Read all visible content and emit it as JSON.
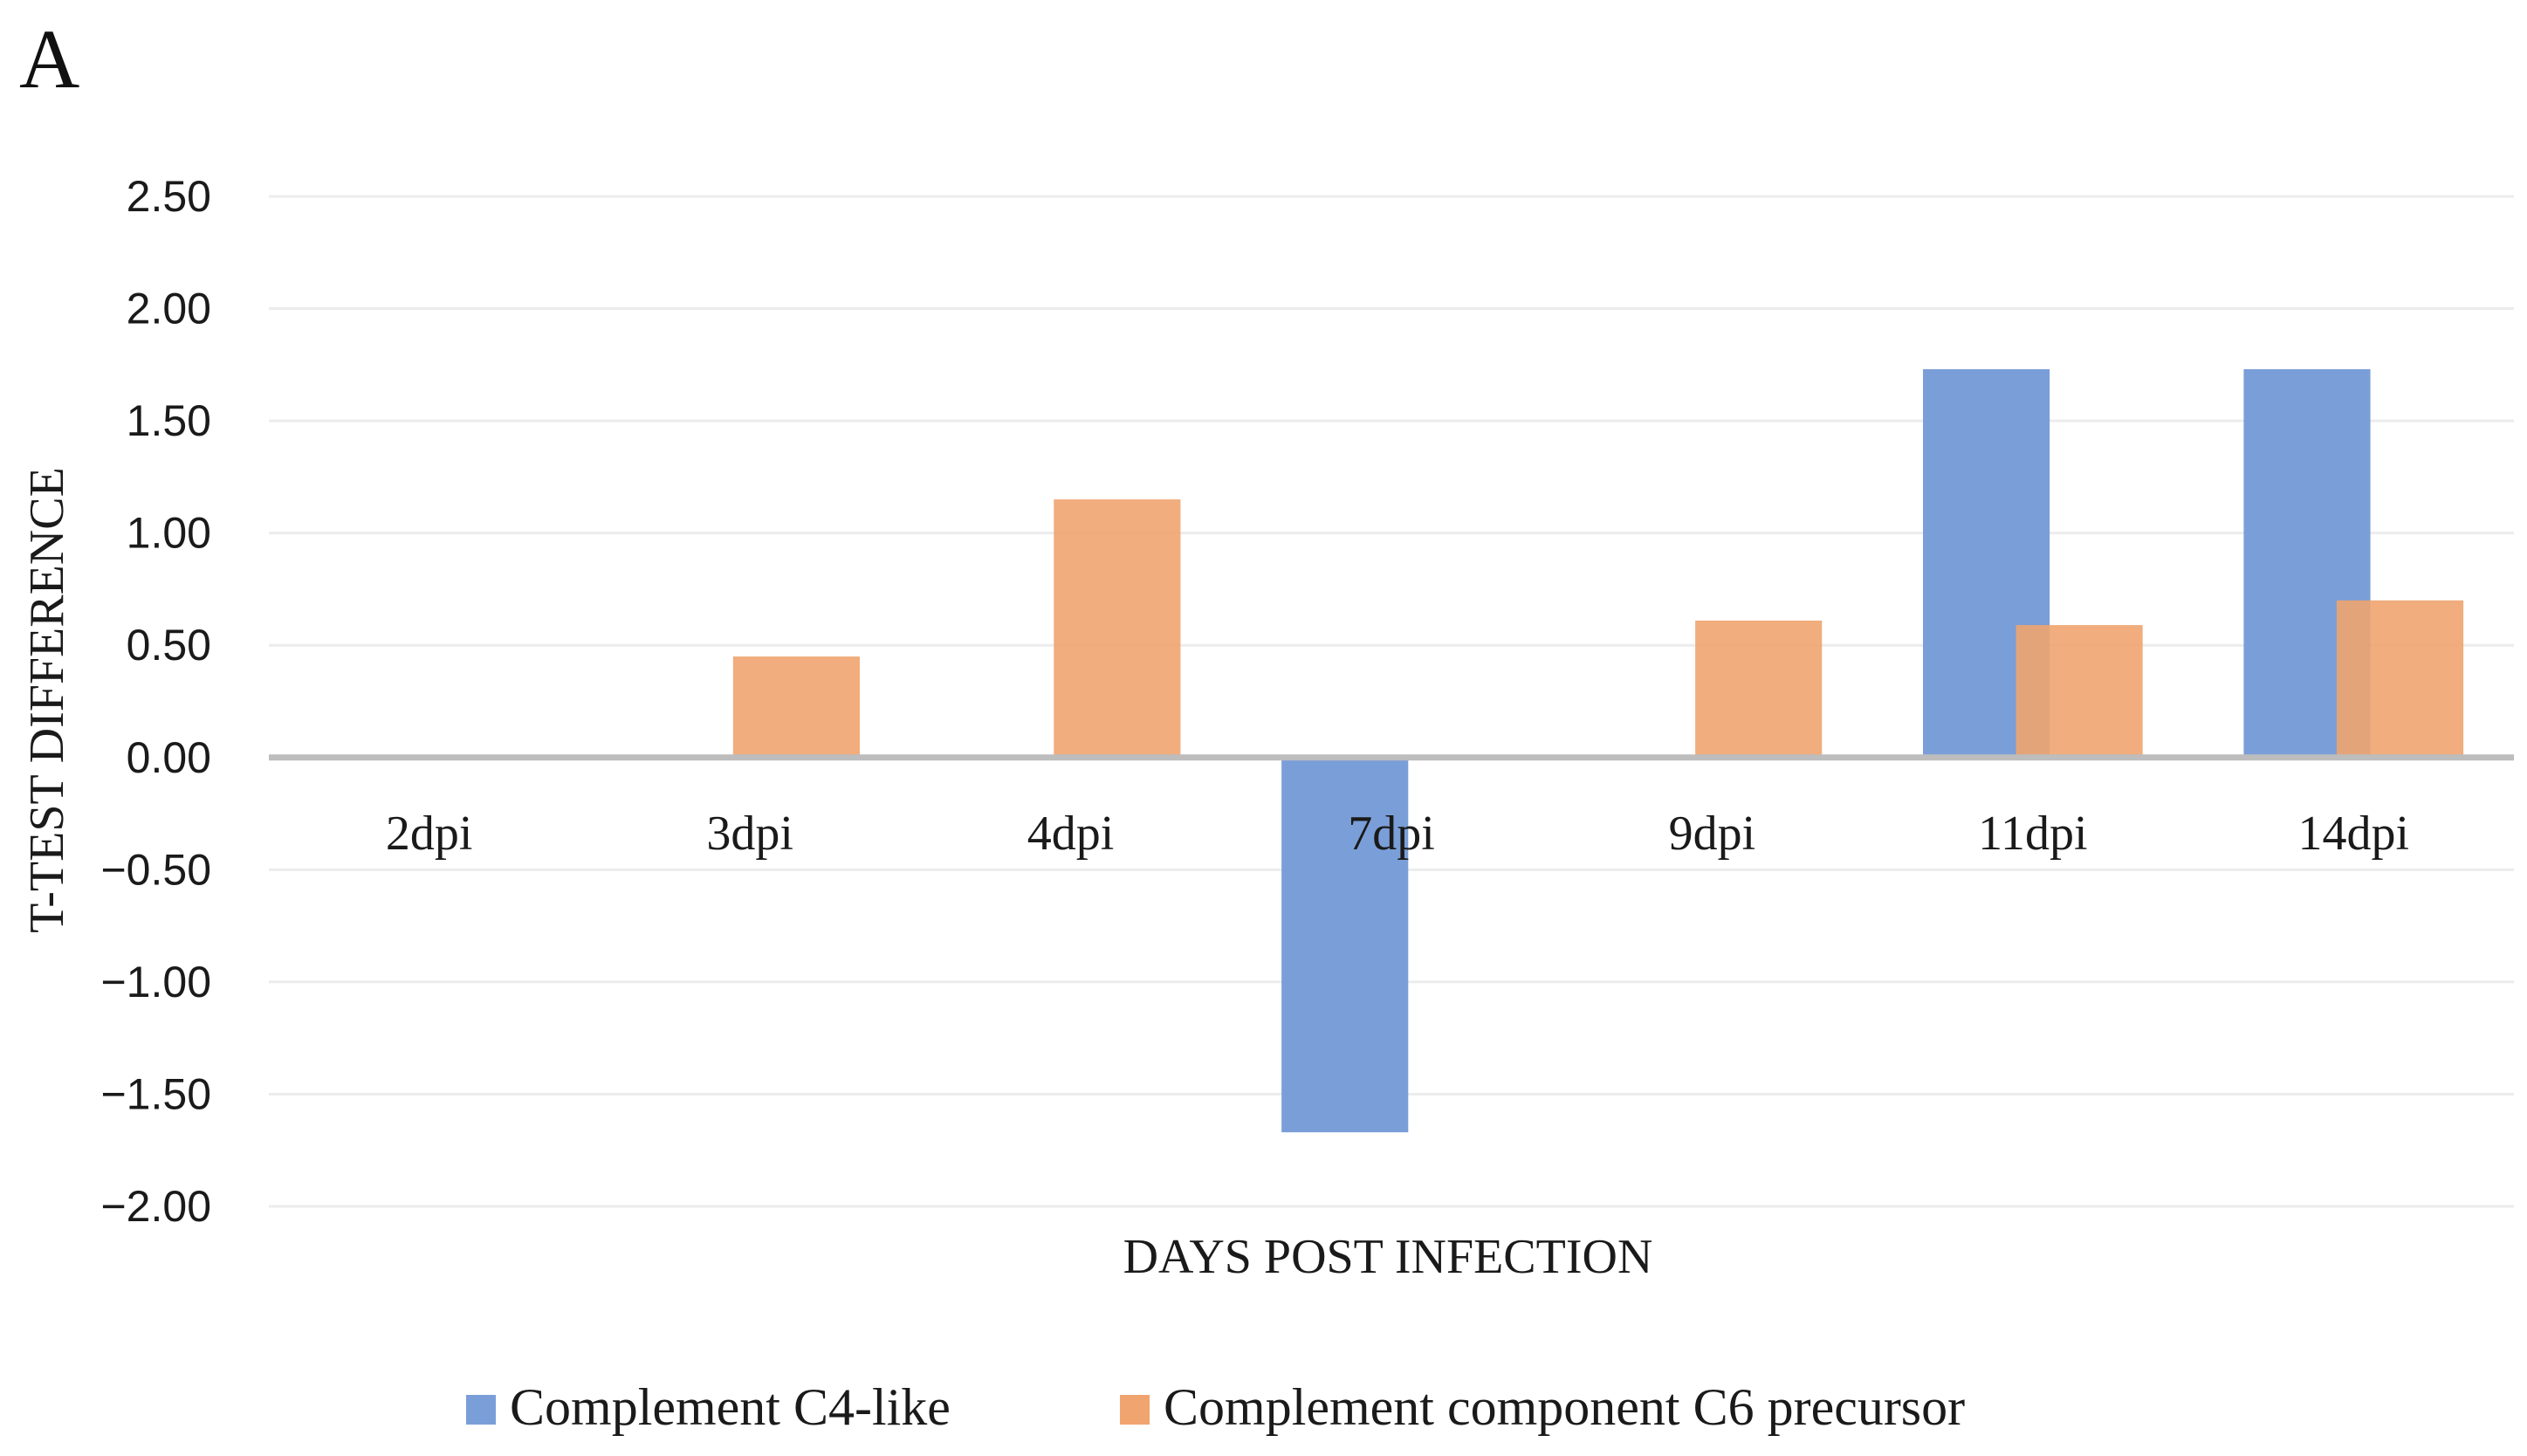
{
  "panel_label": "A",
  "chart_data": {
    "type": "bar",
    "title": "",
    "xlabel": "DAYS POST INFECTION",
    "ylabel": "T-TEST DIFFERENCE",
    "categories": [
      "2dpi",
      "3dpi",
      "4dpi",
      "7dpi",
      "9dpi",
      "11dpi",
      "14dpi"
    ],
    "series": [
      {
        "name": "Complement C4-like",
        "color": "#7a9ed8",
        "values": [
          0,
          0,
          0,
          -1.67,
          0,
          1.73,
          1.73
        ]
      },
      {
        "name": "Complement component C6 precursor",
        "color": "#f0a46f",
        "values": [
          0,
          0.45,
          1.15,
          0,
          0.61,
          0.59,
          0.7
        ]
      }
    ],
    "ylim": [
      -2.0,
      2.5
    ],
    "yticks": [
      2.5,
      2.0,
      1.5,
      1.0,
      0.5,
      0.0,
      -0.5,
      -1.0,
      -1.5,
      -2.0
    ],
    "ytick_labels": [
      "2.50",
      "2.00",
      "1.50",
      "1.00",
      "0.50",
      "0.00",
      "−0.50",
      "−1.00",
      "−1.50",
      "−2.00"
    ],
    "grid": true,
    "legend_position": "bottom-center"
  }
}
